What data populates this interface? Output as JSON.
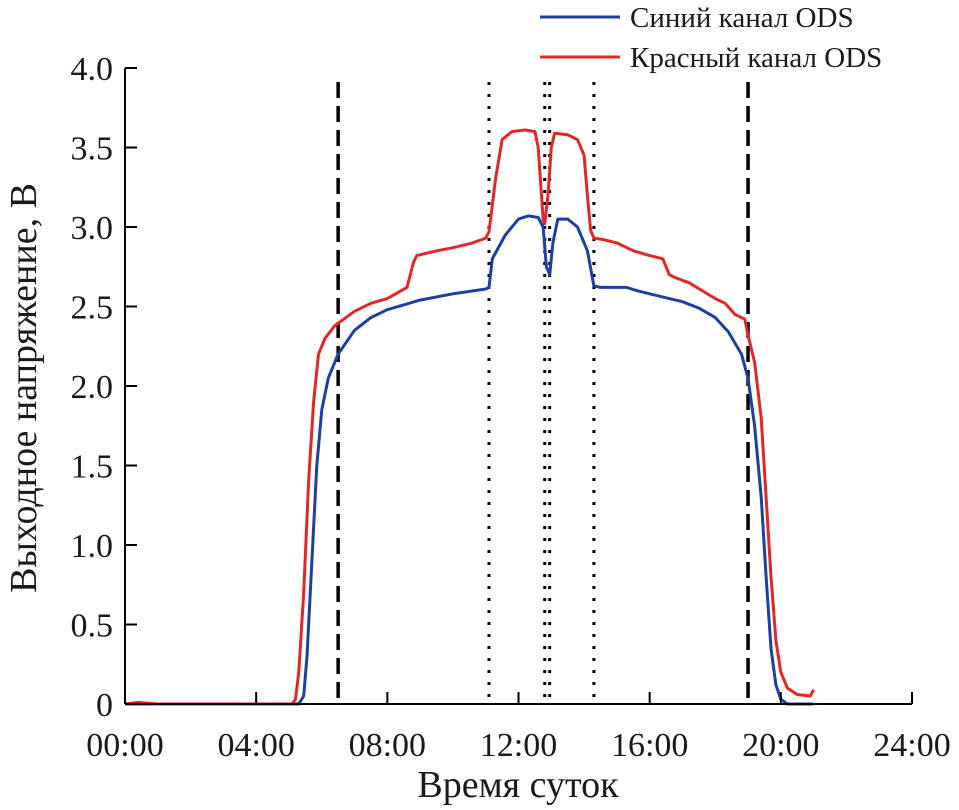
{
  "chart_data": {
    "type": "line",
    "title": "",
    "xlabel": "Время суток",
    "ylabel": "Выходное напряжение, В",
    "xlim": [
      0,
      24
    ],
    "ylim": [
      0,
      4
    ],
    "x_ticks": [
      0,
      4,
      8,
      12,
      16,
      20,
      24
    ],
    "x_tick_labels": [
      "00:00",
      "04:00",
      "08:00",
      "12:00",
      "16:00",
      "20:00",
      "24:00"
    ],
    "y_ticks": [
      0,
      0.5,
      1,
      1.5,
      2,
      2.5,
      3,
      3.5,
      4
    ],
    "y_tick_labels": [
      "0",
      "0.5",
      "1.0",
      "1.5",
      "2.0",
      "2.5",
      "3.0",
      "3.5",
      "4.0"
    ],
    "legend_position": "top-right",
    "series": [
      {
        "name": "Синий канал ODS",
        "color": "#1f3f9f",
        "points": [
          [
            0,
            0
          ],
          [
            5.3,
            0
          ],
          [
            5.45,
            0.05
          ],
          [
            5.55,
            0.3
          ],
          [
            5.7,
            0.9
          ],
          [
            5.85,
            1.5
          ],
          [
            6.0,
            1.85
          ],
          [
            6.2,
            2.05
          ],
          [
            6.5,
            2.2
          ],
          [
            7.0,
            2.35
          ],
          [
            7.5,
            2.43
          ],
          [
            8.0,
            2.48
          ],
          [
            9.0,
            2.54
          ],
          [
            10.0,
            2.58
          ],
          [
            11.0,
            2.61
          ],
          [
            11.1,
            2.62
          ],
          [
            11.2,
            2.8
          ],
          [
            11.6,
            2.95
          ],
          [
            12.0,
            3.05
          ],
          [
            12.3,
            3.07
          ],
          [
            12.6,
            3.06
          ],
          [
            12.75,
            3.0
          ],
          [
            12.85,
            2.75
          ],
          [
            12.95,
            2.7
          ],
          [
            13.05,
            2.9
          ],
          [
            13.2,
            3.05
          ],
          [
            13.5,
            3.05
          ],
          [
            13.8,
            3.0
          ],
          [
            14.1,
            2.85
          ],
          [
            14.3,
            2.63
          ],
          [
            14.5,
            2.62
          ],
          [
            15.0,
            2.62
          ],
          [
            15.3,
            2.62
          ],
          [
            15.6,
            2.6
          ],
          [
            16.0,
            2.58
          ],
          [
            16.6,
            2.55
          ],
          [
            17.0,
            2.53
          ],
          [
            17.5,
            2.49
          ],
          [
            18.0,
            2.43
          ],
          [
            18.4,
            2.34
          ],
          [
            18.8,
            2.2
          ],
          [
            19.0,
            2.05
          ],
          [
            19.2,
            1.75
          ],
          [
            19.4,
            1.3
          ],
          [
            19.55,
            0.8
          ],
          [
            19.7,
            0.35
          ],
          [
            19.85,
            0.12
          ],
          [
            20.0,
            0.03
          ],
          [
            20.2,
            0
          ],
          [
            21.0,
            0
          ]
        ]
      },
      {
        "name": "Красный канал ODS",
        "color": "#e32626",
        "points": [
          [
            0,
            0
          ],
          [
            0.4,
            0.01
          ],
          [
            1.0,
            0
          ],
          [
            5.1,
            0
          ],
          [
            5.2,
            0.03
          ],
          [
            5.3,
            0.2
          ],
          [
            5.45,
            0.7
          ],
          [
            5.6,
            1.4
          ],
          [
            5.75,
            1.9
          ],
          [
            5.9,
            2.2
          ],
          [
            6.1,
            2.3
          ],
          [
            6.4,
            2.38
          ],
          [
            7.0,
            2.47
          ],
          [
            7.5,
            2.52
          ],
          [
            8.0,
            2.55
          ],
          [
            8.6,
            2.62
          ],
          [
            8.8,
            2.78
          ],
          [
            8.9,
            2.82
          ],
          [
            9.5,
            2.85
          ],
          [
            10.0,
            2.87
          ],
          [
            10.6,
            2.9
          ],
          [
            11.0,
            2.93
          ],
          [
            11.1,
            2.97
          ],
          [
            11.3,
            3.3
          ],
          [
            11.5,
            3.55
          ],
          [
            11.8,
            3.6
          ],
          [
            12.2,
            3.61
          ],
          [
            12.5,
            3.6
          ],
          [
            12.6,
            3.5
          ],
          [
            12.7,
            3.2
          ],
          [
            12.75,
            3.05
          ],
          [
            12.8,
            3.02
          ],
          [
            12.9,
            3.2
          ],
          [
            13.0,
            3.5
          ],
          [
            13.1,
            3.59
          ],
          [
            13.5,
            3.58
          ],
          [
            13.8,
            3.55
          ],
          [
            14.0,
            3.45
          ],
          [
            14.1,
            3.2
          ],
          [
            14.2,
            2.98
          ],
          [
            14.3,
            2.93
          ],
          [
            14.6,
            2.92
          ],
          [
            15.0,
            2.9
          ],
          [
            15.5,
            2.85
          ],
          [
            16.0,
            2.82
          ],
          [
            16.4,
            2.8
          ],
          [
            16.6,
            2.7
          ],
          [
            16.8,
            2.68
          ],
          [
            17.2,
            2.65
          ],
          [
            17.6,
            2.6
          ],
          [
            18.0,
            2.55
          ],
          [
            18.3,
            2.52
          ],
          [
            18.6,
            2.45
          ],
          [
            18.9,
            2.42
          ],
          [
            19.0,
            2.32
          ],
          [
            19.2,
            2.15
          ],
          [
            19.4,
            1.8
          ],
          [
            19.55,
            1.3
          ],
          [
            19.7,
            0.8
          ],
          [
            19.85,
            0.4
          ],
          [
            20.0,
            0.2
          ],
          [
            20.2,
            0.1
          ],
          [
            20.5,
            0.06
          ],
          [
            20.9,
            0.05
          ],
          [
            21.0,
            0.09
          ]
        ]
      }
    ],
    "vertical_lines": [
      {
        "x": 6.5,
        "style": "dashed"
      },
      {
        "x": 11.1,
        "style": "dotted"
      },
      {
        "x": 12.8,
        "style": "dotted"
      },
      {
        "x": 12.95,
        "style": "dotted"
      },
      {
        "x": 14.3,
        "style": "dotted"
      },
      {
        "x": 19.0,
        "style": "dashed"
      }
    ]
  }
}
